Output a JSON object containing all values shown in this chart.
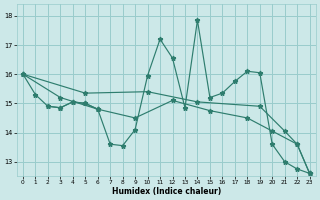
{
  "xlabel": "Humidex (Indice chaleur)",
  "xlim": [
    -0.5,
    23.5
  ],
  "ylim": [
    12.5,
    18.4
  ],
  "yticks": [
    13,
    14,
    15,
    16,
    17,
    18
  ],
  "xticks": [
    0,
    1,
    2,
    3,
    4,
    5,
    6,
    7,
    8,
    9,
    10,
    11,
    12,
    13,
    14,
    15,
    16,
    17,
    18,
    19,
    20,
    21,
    22,
    23
  ],
  "bg_color": "#cce8e8",
  "grid_color": "#99cccc",
  "line_color": "#2e7d6e",
  "lines": [
    {
      "x": [
        0,
        1,
        2,
        3,
        4,
        5,
        6,
        7,
        8,
        9,
        10,
        11,
        12,
        13,
        14,
        15,
        16,
        17,
        18,
        19,
        20,
        21,
        22,
        23
      ],
      "y": [
        16.0,
        15.3,
        14.9,
        14.85,
        15.05,
        15.0,
        14.8,
        13.6,
        13.55,
        14.1,
        15.95,
        17.2,
        16.55,
        14.85,
        17.85,
        15.2,
        15.35,
        15.75,
        16.1,
        16.05,
        13.6,
        13.0,
        12.75,
        12.6
      ]
    },
    {
      "x": [
        0,
        3,
        6,
        9,
        12,
        15,
        18,
        20,
        22,
        23
      ],
      "y": [
        16.0,
        15.2,
        14.8,
        14.5,
        15.1,
        14.75,
        14.5,
        14.05,
        13.6,
        12.6
      ]
    },
    {
      "x": [
        2,
        3,
        4,
        5,
        6
      ],
      "y": [
        14.9,
        14.85,
        15.05,
        15.0,
        14.8
      ]
    },
    {
      "x": [
        0,
        5,
        10,
        14,
        19,
        21,
        22,
        23
      ],
      "y": [
        16.0,
        15.35,
        15.4,
        15.05,
        14.9,
        14.05,
        13.6,
        12.6
      ]
    }
  ]
}
